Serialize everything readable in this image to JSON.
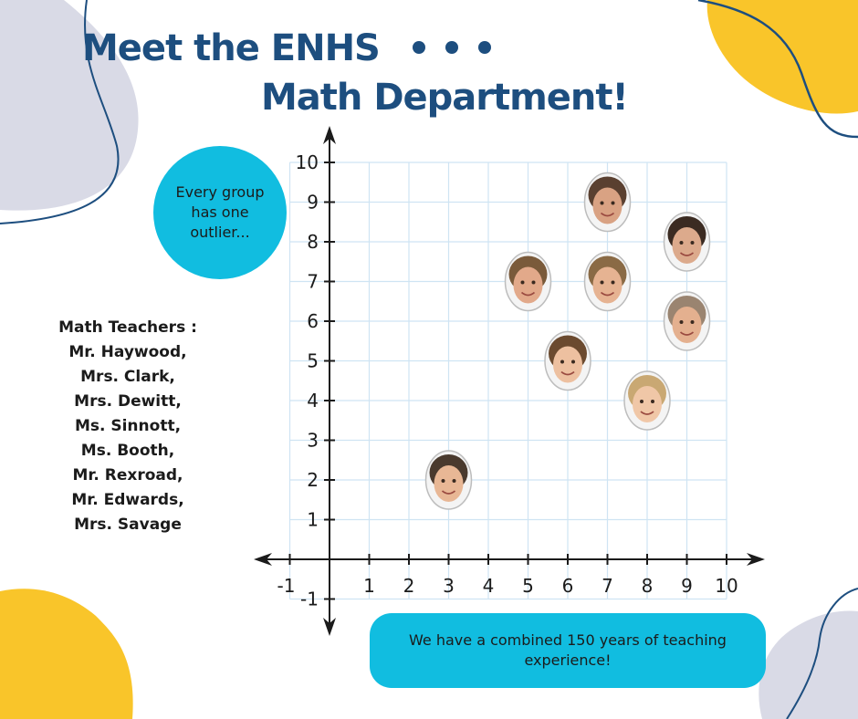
{
  "title": {
    "line1": "Meet the ENHS",
    "line2": "Math Department!"
  },
  "callout": "Every group has one outlier...",
  "teachers": {
    "heading": "Math Teachers :",
    "names": [
      "Mr. Haywood,",
      "Mrs. Clark,",
      "Mrs. Dewitt,",
      "Ms. Sinnott,",
      "Ms. Booth,",
      "Mr. Rexroad,",
      "Mr. Edwards,",
      "Mrs. Savage"
    ]
  },
  "footer_note": "We have a combined 150 years of teaching experience!",
  "colors": {
    "title": "#1d4e7f",
    "bubble": "#11bde0",
    "accent_yellow": "#f9c52a",
    "accent_gray": "#d9dae6",
    "grid": "#cfe4f3",
    "axis": "#1b1b1b",
    "outline": "#1d4e7f"
  },
  "chart_data": {
    "type": "scatter",
    "x_ticks": [
      -1,
      1,
      2,
      3,
      4,
      5,
      6,
      7,
      8,
      9,
      10
    ],
    "y_ticks": [
      -1,
      1,
      2,
      3,
      4,
      5,
      6,
      7,
      8,
      9,
      10
    ],
    "xlim": [
      -1.5,
      10
    ],
    "ylim": [
      -1,
      10
    ],
    "grid": true,
    "arrows": true,
    "marker": "face-photo",
    "points": [
      {
        "x": 3,
        "y": 2
      },
      {
        "x": 5,
        "y": 7
      },
      {
        "x": 6,
        "y": 5
      },
      {
        "x": 7,
        "y": 9
      },
      {
        "x": 7,
        "y": 7
      },
      {
        "x": 8,
        "y": 4
      },
      {
        "x": 9,
        "y": 8
      },
      {
        "x": 9,
        "y": 6
      }
    ]
  }
}
